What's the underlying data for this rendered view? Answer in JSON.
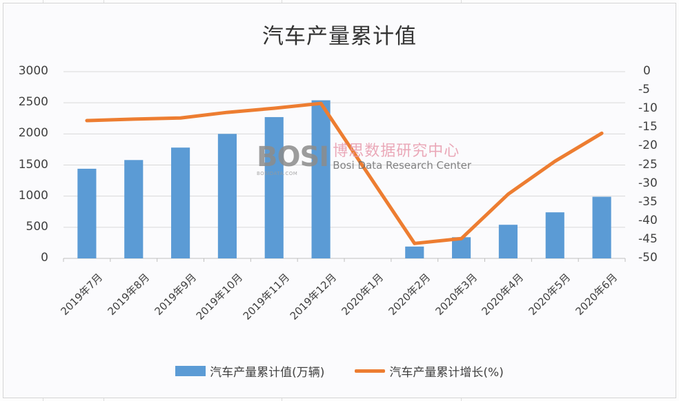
{
  "chart_data": {
    "type": "bar",
    "title": "汽车产量累计值",
    "categories": [
      "2019年7月",
      "2019年8月",
      "2019年9月",
      "2019年10月",
      "2019年11月",
      "2019年12月",
      "2020年1月",
      "2020年2月",
      "2020年3月",
      "2020年4月",
      "2020年5月",
      "2020年6月"
    ],
    "series": [
      {
        "name": "汽车产量累计值(万辆)",
        "type": "bar",
        "axis": "left",
        "color": "#5b9bd5",
        "values": [
          1440,
          1580,
          1780,
          2000,
          2270,
          2540,
          null,
          190,
          340,
          540,
          740,
          990
        ]
      },
      {
        "name": "汽车产量累计增长(%)",
        "type": "line",
        "axis": "right",
        "color": "#ed7d31",
        "values": [
          -13.1,
          -12.7,
          -12.4,
          -10.9,
          -9.8,
          -8.5,
          null,
          -46.0,
          -44.7,
          -32.8,
          -24.0,
          -16.5
        ]
      }
    ],
    "left_axis": {
      "min": 0,
      "max": 3000,
      "step": 500,
      "ticks": [
        "3000",
        "2500",
        "2000",
        "1500",
        "1000",
        "500",
        "0"
      ]
    },
    "right_axis": {
      "min": -50,
      "max": 0,
      "step": 5,
      "ticks": [
        "0",
        "-5",
        "-10",
        "-15",
        "-20",
        "-25",
        "-30",
        "-35",
        "-40",
        "-45",
        "-50"
      ]
    },
    "xlabel": "",
    "ylabel": "",
    "grid": true,
    "legend_position": "bottom"
  },
  "watermark": {
    "logo": "BOSI",
    "logo_small": "BOSIDATA.COM",
    "cn": "博思数据研究中心",
    "en": "Bosi Data Research Center"
  },
  "legend": {
    "bar_label": "汽车产量累计值(万辆)",
    "line_label": "汽车产量累计增长(%)"
  }
}
